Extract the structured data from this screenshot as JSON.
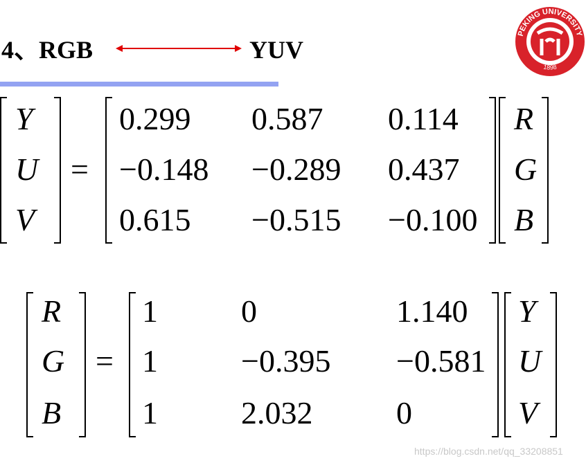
{
  "header": {
    "left": "4、RGB",
    "right": "YUV",
    "logo_text": "PEKING UNIVERSITY",
    "logo_year": "1898"
  },
  "equations": [
    {
      "lhs": [
        "Y",
        "U",
        "V"
      ],
      "operator": "=",
      "matrix": [
        [
          "0.299",
          "0.587",
          "0.114"
        ],
        [
          "−0.148",
          "−0.289",
          "0.437"
        ],
        [
          "0.615",
          "−0.515",
          "−0.100"
        ]
      ],
      "rhs": [
        "R",
        "G",
        "B"
      ]
    },
    {
      "lhs": [
        "R",
        "G",
        "B"
      ],
      "operator": "=",
      "matrix": [
        [
          "1",
          "0",
          "1.140"
        ],
        [
          "1",
          "−0.395",
          "−0.581"
        ],
        [
          "1",
          "2.032",
          "0"
        ]
      ],
      "rhs": [
        "Y",
        "U",
        "V"
      ]
    }
  ],
  "watermark": "https://blog.csdn.net/qq_33208851"
}
